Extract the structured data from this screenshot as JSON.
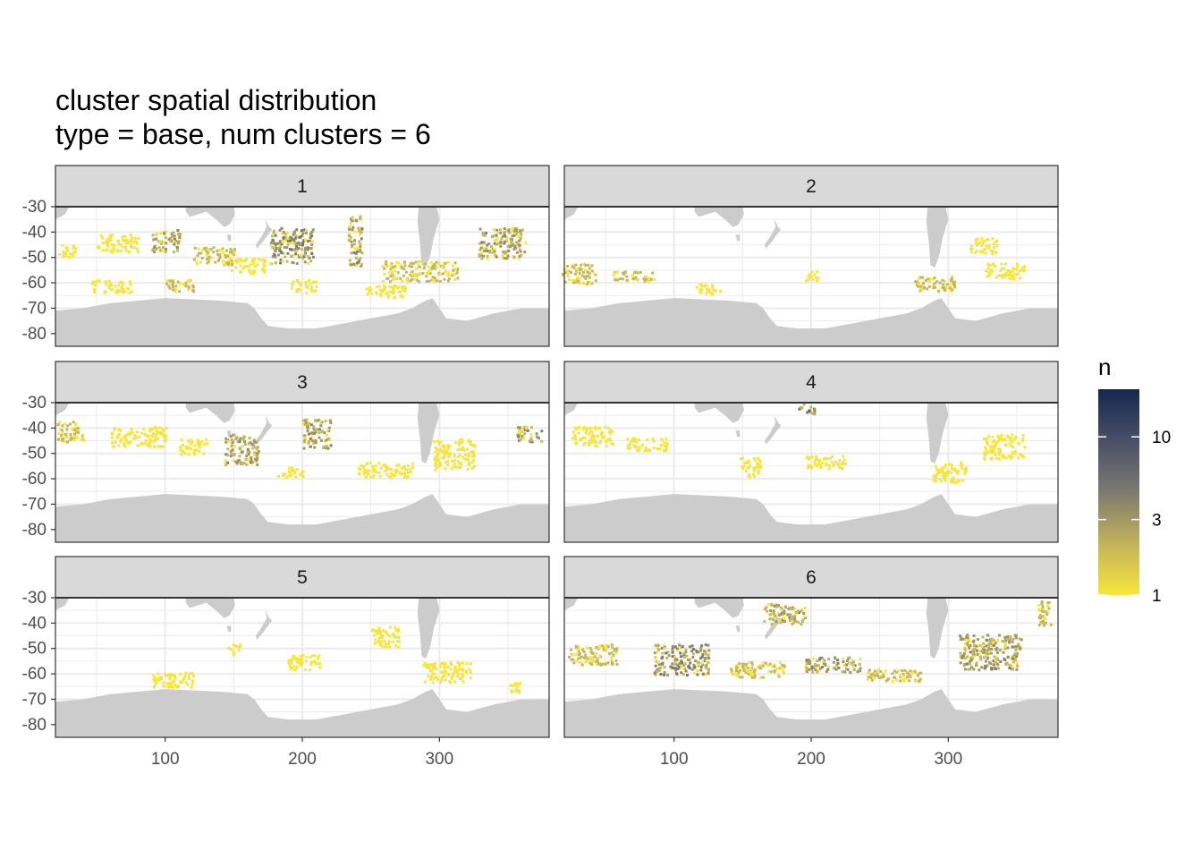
{
  "chart_data": {
    "type": "heatmap",
    "title": "cluster spatial distribution",
    "subtitle": "type = base, num clusters = 6",
    "xlabel": "",
    "ylabel": "",
    "xlim": [
      20,
      380
    ],
    "ylim": [
      -85,
      -30
    ],
    "x_ticks": [
      "100",
      "200",
      "300"
    ],
    "x_tick_values": [
      100,
      200,
      300
    ],
    "y_ticks": [
      "-30",
      "-40",
      "-50",
      "-60",
      "-70",
      "-80"
    ],
    "y_tick_values": [
      -30,
      -40,
      -50,
      -60,
      -70,
      -80
    ],
    "grid": true,
    "land_color": "#cccccc",
    "panel_border": "#333333",
    "strip_fill": "#d9d9d9",
    "facets": [
      {
        "label": "1",
        "clusters": [
          {
            "x": 28,
            "y": -47,
            "w": 12,
            "h": 6,
            "n": 1
          },
          {
            "x": 65,
            "y": -44,
            "w": 30,
            "h": 7,
            "n": 1
          },
          {
            "x": 100,
            "y": -43,
            "w": 20,
            "h": 9,
            "n": 3
          },
          {
            "x": 135,
            "y": -49,
            "w": 30,
            "h": 7,
            "n": 2
          },
          {
            "x": 192,
            "y": -45,
            "w": 32,
            "h": 14,
            "n": 4
          },
          {
            "x": 238,
            "y": -43,
            "w": 10,
            "h": 20,
            "n": 3
          },
          {
            "x": 285,
            "y": -55,
            "w": 55,
            "h": 8,
            "n": 2
          },
          {
            "x": 345,
            "y": -44,
            "w": 34,
            "h": 12,
            "n": 3
          },
          {
            "x": 60,
            "y": -61,
            "w": 30,
            "h": 5,
            "n": 1
          },
          {
            "x": 110,
            "y": -61,
            "w": 20,
            "h": 5,
            "n": 2
          },
          {
            "x": 200,
            "y": -61,
            "w": 20,
            "h": 5,
            "n": 1
          },
          {
            "x": 260,
            "y": -63,
            "w": 30,
            "h": 5,
            "n": 1
          },
          {
            "x": 160,
            "y": -53,
            "w": 25,
            "h": 6,
            "n": 1
          }
        ]
      },
      {
        "label": "2",
        "clusters": [
          {
            "x": 30,
            "y": -56,
            "w": 25,
            "h": 8,
            "n": 2
          },
          {
            "x": 70,
            "y": -57,
            "w": 30,
            "h": 4,
            "n": 2
          },
          {
            "x": 125,
            "y": -62,
            "w": 20,
            "h": 4,
            "n": 1
          },
          {
            "x": 290,
            "y": -60,
            "w": 30,
            "h": 6,
            "n": 2
          },
          {
            "x": 340,
            "y": -55,
            "w": 30,
            "h": 6,
            "n": 1
          },
          {
            "x": 325,
            "y": -45,
            "w": 20,
            "h": 6,
            "n": 1
          },
          {
            "x": 200,
            "y": -57,
            "w": 10,
            "h": 4,
            "n": 1
          }
        ]
      },
      {
        "label": "3",
        "clusters": [
          {
            "x": 30,
            "y": -41,
            "w": 20,
            "h": 8,
            "n": 2
          },
          {
            "x": 80,
            "y": -43,
            "w": 40,
            "h": 8,
            "n": 1
          },
          {
            "x": 120,
            "y": -47,
            "w": 20,
            "h": 6,
            "n": 1
          },
          {
            "x": 155,
            "y": -48,
            "w": 25,
            "h": 12,
            "n": 3
          },
          {
            "x": 210,
            "y": -42,
            "w": 20,
            "h": 12,
            "n": 3
          },
          {
            "x": 260,
            "y": -56,
            "w": 40,
            "h": 6,
            "n": 1
          },
          {
            "x": 310,
            "y": -50,
            "w": 30,
            "h": 12,
            "n": 1
          },
          {
            "x": 365,
            "y": -42,
            "w": 18,
            "h": 6,
            "n": 4
          },
          {
            "x": 190,
            "y": -57,
            "w": 20,
            "h": 4,
            "n": 1
          }
        ]
      },
      {
        "label": "4",
        "clusters": [
          {
            "x": 40,
            "y": -43,
            "w": 30,
            "h": 8,
            "n": 1
          },
          {
            "x": 80,
            "y": -46,
            "w": 30,
            "h": 5,
            "n": 1
          },
          {
            "x": 195,
            "y": -32,
            "w": 15,
            "h": 4,
            "n": 6
          },
          {
            "x": 155,
            "y": -55,
            "w": 15,
            "h": 8,
            "n": 1
          },
          {
            "x": 210,
            "y": -53,
            "w": 30,
            "h": 5,
            "n": 1
          },
          {
            "x": 300,
            "y": -57,
            "w": 25,
            "h": 8,
            "n": 1
          },
          {
            "x": 340,
            "y": -47,
            "w": 30,
            "h": 10,
            "n": 1
          }
        ]
      },
      {
        "label": "5",
        "clusters": [
          {
            "x": 105,
            "y": -62,
            "w": 30,
            "h": 6,
            "n": 1
          },
          {
            "x": 200,
            "y": -55,
            "w": 25,
            "h": 6,
            "n": 1
          },
          {
            "x": 305,
            "y": -59,
            "w": 35,
            "h": 8,
            "n": 1
          },
          {
            "x": 355,
            "y": -65,
            "w": 12,
            "h": 4,
            "n": 1
          },
          {
            "x": 260,
            "y": -45,
            "w": 20,
            "h": 8,
            "n": 1
          },
          {
            "x": 150,
            "y": -50,
            "w": 10,
            "h": 4,
            "n": 1
          }
        ]
      },
      {
        "label": "6",
        "clusters": [
          {
            "x": 40,
            "y": -52,
            "w": 35,
            "h": 8,
            "n": 2
          },
          {
            "x": 105,
            "y": -54,
            "w": 40,
            "h": 12,
            "n": 4
          },
          {
            "x": 160,
            "y": -58,
            "w": 40,
            "h": 6,
            "n": 2
          },
          {
            "x": 215,
            "y": -56,
            "w": 40,
            "h": 6,
            "n": 3
          },
          {
            "x": 260,
            "y": -60,
            "w": 40,
            "h": 5,
            "n": 2
          },
          {
            "x": 330,
            "y": -51,
            "w": 45,
            "h": 14,
            "n": 3
          },
          {
            "x": 180,
            "y": -36,
            "w": 30,
            "h": 8,
            "n": 3
          },
          {
            "x": 370,
            "y": -36,
            "w": 10,
            "h": 10,
            "n": 2
          }
        ]
      }
    ],
    "legend": {
      "title": "n",
      "labels": [
        "1",
        "3",
        "10"
      ],
      "values": [
        1,
        3,
        10
      ],
      "max": 20,
      "scale": "log",
      "colors": [
        "#f7e53b",
        "#c2b35b",
        "#7c7a6f",
        "#4b4f67",
        "#15284e"
      ]
    }
  }
}
